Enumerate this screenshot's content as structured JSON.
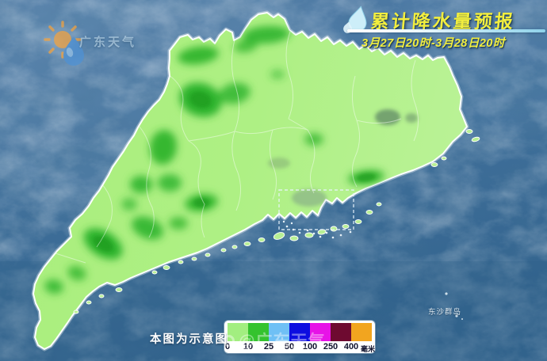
{
  "logo": {
    "name": "广东天气"
  },
  "title": {
    "main": "累计降水量预报",
    "period": "3月27日20时-3月28日20时",
    "color": "#f2ee3e"
  },
  "legend": {
    "note": "本图为示意图",
    "unit": "毫米",
    "ticks": [
      "0",
      "10",
      "25",
      "50",
      "100",
      "250",
      "400"
    ],
    "swatches": [
      {
        "range": "0-10",
        "color": "#a2ee80"
      },
      {
        "range": "10-25",
        "color": "#34c32e"
      },
      {
        "range": "25-50",
        "color": "#6fc0f5"
      },
      {
        "range": "50-100",
        "color": "#0d0de0"
      },
      {
        "range": "100-250",
        "color": "#e713e7"
      },
      {
        "range": "250-400",
        "color": "#6e0a30"
      },
      {
        "range": "400+",
        "color": "#f2a51f"
      }
    ]
  },
  "map": {
    "island_label": "东沙群岛",
    "sea_color": "#3e6b93",
    "province_fill_light": "#aaef7f",
    "province_fill_rain": "#2eb42d",
    "border_color": "#ffffff"
  },
  "watermark": {
    "text": "@广东天气"
  }
}
